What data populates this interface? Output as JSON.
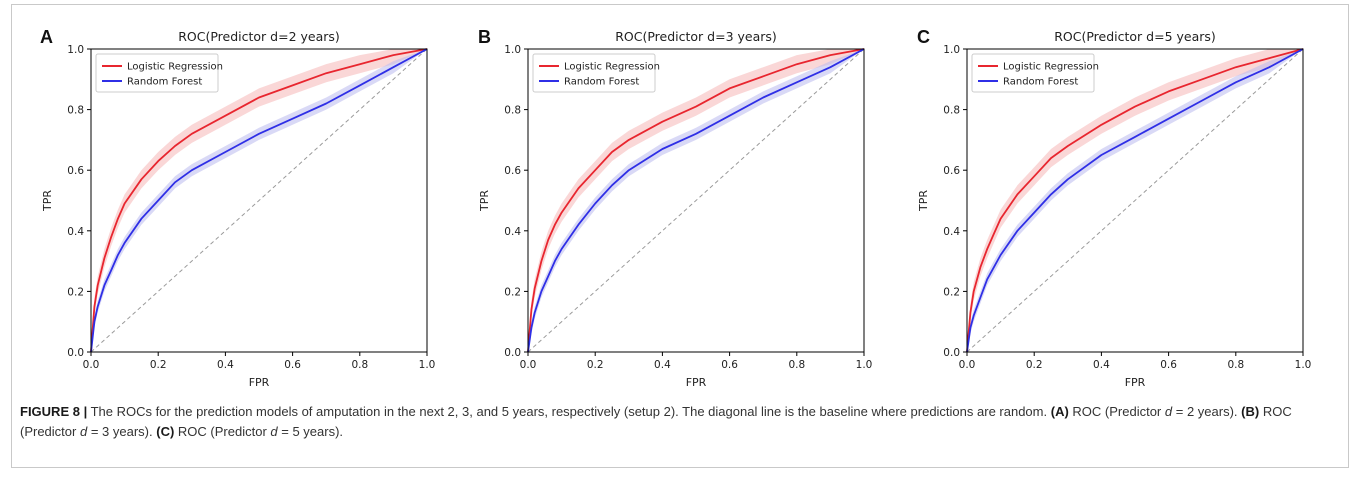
{
  "colors": {
    "lr": "#e8262f",
    "rf": "#2f2fe6",
    "lr_band": "#f6b7b7",
    "rf_band": "#b9b9ef",
    "diag": "#9a9a9a"
  },
  "chart_data": [
    {
      "type": "line",
      "panel_letter": "A",
      "title": "ROC(Predictor d=2 years)",
      "xlabel": "FPR",
      "ylabel": "TPR",
      "xlim": [
        0,
        1
      ],
      "ylim": [
        0,
        1
      ],
      "xticks": [
        "0.0",
        "0.2",
        "0.4",
        "0.6",
        "0.8",
        "1.0"
      ],
      "yticks": [
        "0.0",
        "0.2",
        "0.4",
        "0.6",
        "0.8",
        "1.0"
      ],
      "legend": "top-left",
      "series": [
        {
          "name": "Logistic Regression",
          "x": [
            0,
            0.01,
            0.02,
            0.04,
            0.06,
            0.08,
            0.1,
            0.15,
            0.2,
            0.25,
            0.3,
            0.4,
            0.5,
            0.6,
            0.7,
            0.8,
            0.9,
            1.0
          ],
          "y": [
            0,
            0.15,
            0.22,
            0.31,
            0.38,
            0.44,
            0.49,
            0.57,
            0.63,
            0.68,
            0.72,
            0.78,
            0.84,
            0.88,
            0.92,
            0.95,
            0.98,
            1.0
          ],
          "band": 0.03
        },
        {
          "name": "Random Forest",
          "x": [
            0,
            0.01,
            0.02,
            0.04,
            0.06,
            0.08,
            0.1,
            0.15,
            0.2,
            0.25,
            0.3,
            0.4,
            0.5,
            0.6,
            0.7,
            0.8,
            0.9,
            1.0
          ],
          "y": [
            0,
            0.1,
            0.15,
            0.22,
            0.27,
            0.32,
            0.36,
            0.44,
            0.5,
            0.56,
            0.6,
            0.66,
            0.72,
            0.77,
            0.82,
            0.88,
            0.94,
            1.0
          ],
          "band": 0.02
        }
      ],
      "baseline": {
        "x": [
          0,
          1
        ],
        "y": [
          0,
          1
        ]
      }
    },
    {
      "type": "line",
      "panel_letter": "B",
      "title": "ROC(Predictor d=3 years)",
      "xlabel": "FPR",
      "ylabel": "TPR",
      "xlim": [
        0,
        1
      ],
      "ylim": [
        0,
        1
      ],
      "xticks": [
        "0.0",
        "0.2",
        "0.4",
        "0.6",
        "0.8",
        "1.0"
      ],
      "yticks": [
        "0.0",
        "0.2",
        "0.4",
        "0.6",
        "0.8",
        "1.0"
      ],
      "legend": "top-left",
      "series": [
        {
          "name": "Logistic Regression",
          "x": [
            0,
            0.01,
            0.02,
            0.04,
            0.06,
            0.08,
            0.1,
            0.15,
            0.2,
            0.25,
            0.3,
            0.4,
            0.5,
            0.6,
            0.7,
            0.8,
            0.9,
            1.0
          ],
          "y": [
            0,
            0.14,
            0.21,
            0.3,
            0.37,
            0.42,
            0.46,
            0.54,
            0.6,
            0.66,
            0.7,
            0.76,
            0.81,
            0.87,
            0.91,
            0.95,
            0.98,
            1.0
          ],
          "band": 0.03
        },
        {
          "name": "Random Forest",
          "x": [
            0,
            0.01,
            0.02,
            0.04,
            0.06,
            0.08,
            0.1,
            0.15,
            0.2,
            0.25,
            0.3,
            0.4,
            0.5,
            0.6,
            0.7,
            0.8,
            0.9,
            1.0
          ],
          "y": [
            0,
            0.08,
            0.13,
            0.2,
            0.25,
            0.3,
            0.34,
            0.42,
            0.49,
            0.55,
            0.6,
            0.67,
            0.72,
            0.78,
            0.84,
            0.89,
            0.94,
            1.0
          ],
          "band": 0.02
        }
      ],
      "baseline": {
        "x": [
          0,
          1
        ],
        "y": [
          0,
          1
        ]
      }
    },
    {
      "type": "line",
      "panel_letter": "C",
      "title": "ROC(Predictor d=5 years)",
      "xlabel": "FPR",
      "ylabel": "TPR",
      "xlim": [
        0,
        1
      ],
      "ylim": [
        0,
        1
      ],
      "xticks": [
        "0.0",
        "0.2",
        "0.4",
        "0.6",
        "0.8",
        "1.0"
      ],
      "yticks": [
        "0.0",
        "0.2",
        "0.4",
        "0.6",
        "0.8",
        "1.0"
      ],
      "legend": "top-left",
      "series": [
        {
          "name": "Logistic Regression",
          "x": [
            0,
            0.01,
            0.02,
            0.04,
            0.06,
            0.08,
            0.1,
            0.15,
            0.2,
            0.25,
            0.3,
            0.4,
            0.5,
            0.6,
            0.7,
            0.8,
            0.9,
            1.0
          ],
          "y": [
            0,
            0.13,
            0.2,
            0.28,
            0.34,
            0.39,
            0.44,
            0.52,
            0.58,
            0.64,
            0.68,
            0.75,
            0.81,
            0.86,
            0.9,
            0.94,
            0.97,
            1.0
          ],
          "band": 0.03
        },
        {
          "name": "Random Forest",
          "x": [
            0,
            0.01,
            0.02,
            0.04,
            0.06,
            0.08,
            0.1,
            0.15,
            0.2,
            0.25,
            0.3,
            0.4,
            0.5,
            0.6,
            0.7,
            0.8,
            0.9,
            1.0
          ],
          "y": [
            0,
            0.08,
            0.12,
            0.18,
            0.24,
            0.28,
            0.32,
            0.4,
            0.46,
            0.52,
            0.57,
            0.65,
            0.71,
            0.77,
            0.83,
            0.89,
            0.94,
            1.0
          ],
          "band": 0.02
        }
      ],
      "baseline": {
        "x": [
          0,
          1
        ],
        "y": [
          0,
          1
        ]
      }
    }
  ],
  "caption": {
    "label": "FIGURE 8 |",
    "text_1": "The ROCs for the prediction models of amputation in the next 2, 3, and 5 years, respectively (setup 2). The diagonal line is the baseline where predictions are random.",
    "a_label": "(A)",
    "a_pre": "ROC (Predictor",
    "a_var": "d",
    "a_post": "= 2 years).",
    "b_label": "(B)",
    "b_pre": "ROC (Predictor",
    "b_var": "d",
    "b_post": "= 3 years).",
    "c_label": "(C)",
    "c_pre": "ROC (Predictor",
    "c_var": "d",
    "c_post": "= 5 years)."
  }
}
